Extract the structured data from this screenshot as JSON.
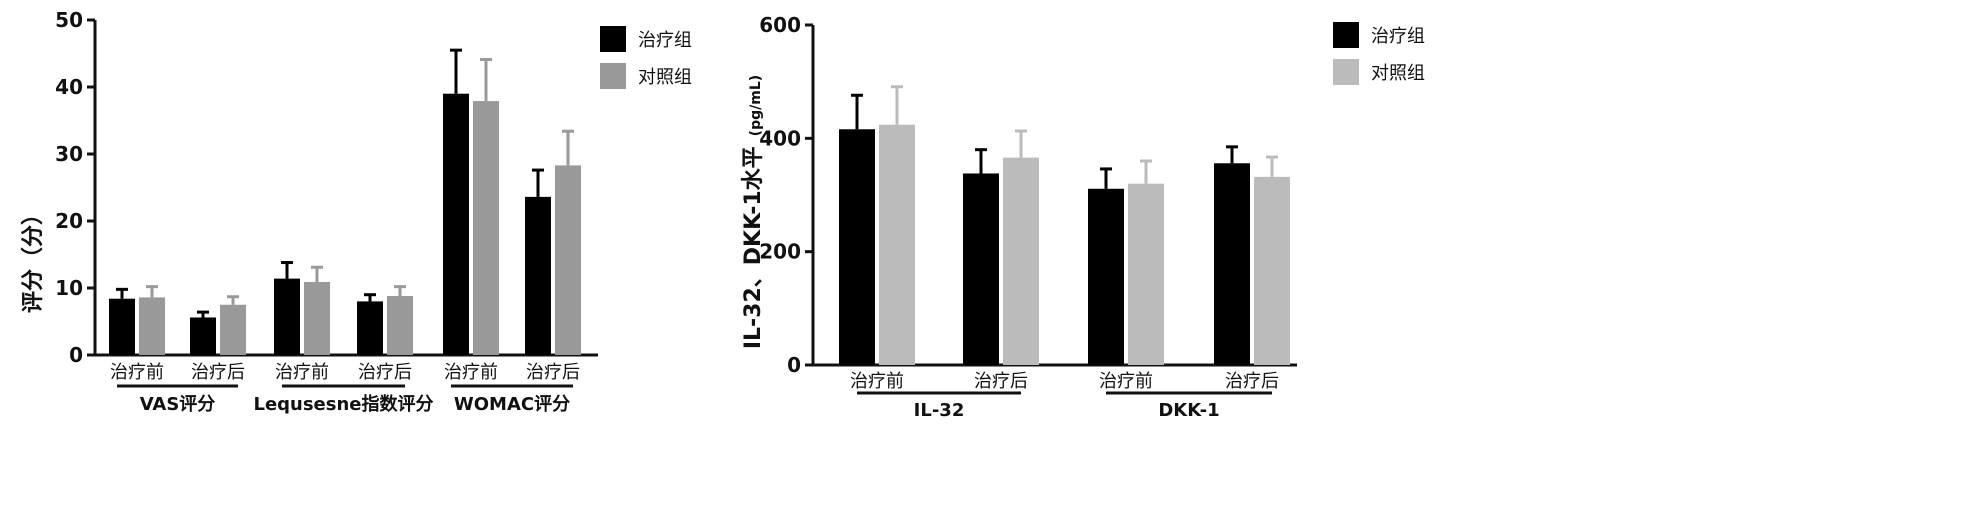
{
  "chart_data": [
    {
      "type": "bar",
      "ylabel": "评分（分）",
      "ylim": [
        0,
        50
      ],
      "yticks": [
        0,
        10,
        20,
        30,
        40,
        50
      ],
      "categories": [
        "治疗前",
        "治疗后",
        "治疗前",
        "治疗后",
        "治疗前",
        "治疗后"
      ],
      "groups": [
        {
          "label": "VAS评分",
          "span": [
            0,
            1
          ]
        },
        {
          "label": "Lequsesne指数评分",
          "span": [
            2,
            3
          ]
        },
        {
          "label": "WOMAC评分",
          "span": [
            4,
            5
          ]
        }
      ],
      "series": [
        {
          "name": "治疗组",
          "color": "#000000",
          "values": [
            8.4,
            5.6,
            11.4,
            8.0,
            39.0,
            23.6
          ],
          "errors": [
            1.4,
            0.8,
            2.4,
            1.0,
            6.5,
            4.0
          ]
        },
        {
          "name": "对照组",
          "color": "#999999",
          "values": [
            8.6,
            7.5,
            10.9,
            8.8,
            37.9,
            28.3
          ],
          "errors": [
            1.6,
            1.2,
            2.2,
            1.4,
            6.2,
            5.1
          ]
        }
      ],
      "legend_position": "top-right"
    },
    {
      "type": "bar",
      "ylabel": "IL-32、DKK-1水平",
      "ylabel_unit": "(pg/mL)",
      "ylim": [
        0,
        600
      ],
      "yticks": [
        0,
        200,
        400,
        600
      ],
      "categories": [
        "治疗前",
        "治疗后",
        "治疗前",
        "治疗后"
      ],
      "groups": [
        {
          "label": "IL-32",
          "span": [
            0,
            1
          ]
        },
        {
          "label": "DKK-1",
          "span": [
            2,
            3
          ]
        }
      ],
      "series": [
        {
          "name": "治疗组",
          "color": "#000000",
          "values": [
            416,
            338,
            311,
            356
          ],
          "errors": [
            60,
            42,
            35,
            29
          ]
        },
        {
          "name": "对照组",
          "color": "#bbbbbb",
          "values": [
            424,
            366,
            320,
            332
          ],
          "errors": [
            67,
            47,
            40,
            35
          ]
        }
      ],
      "legend_position": "top-right"
    }
  ]
}
